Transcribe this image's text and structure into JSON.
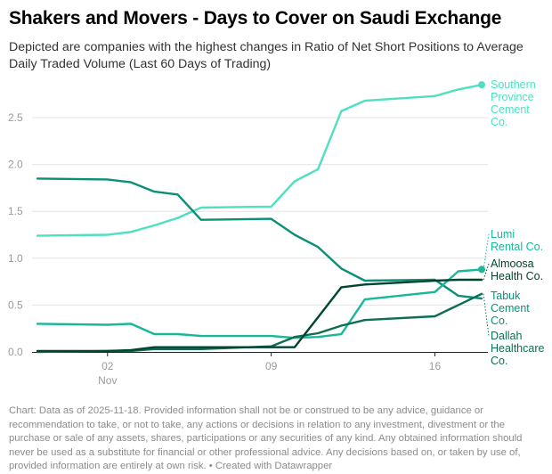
{
  "header": {
    "title": "Shakers and Movers - Days to Cover on Saudi Exchange",
    "subtitle": "Depicted are companies with the highest changes in Ratio of Net Short Positions to Average Daily Traded Volume (Last 60 Days of Trading)"
  },
  "footer": {
    "text": "Chart: Data as of 2025-11-18. Provided information shall not be or construed to be any advice, guidance or recommendation to take, or not to take, any actions or decisions in relation to any investment, divestment or the purchase or sale of any assets, shares, participations or any securities of any kind. Any obtained information should never be used as a substitute for financial or other professional advice. Any decisions based on, or taken by use of, provided information are entirely at own risk. • Created with Datawrapper"
  },
  "chart_data": {
    "type": "line",
    "title": "Shakers and Movers - Days to Cover on Saudi Exchange",
    "xlabel": "",
    "ylabel": "",
    "x": [
      "2025-10-30",
      "2025-11-02",
      "2025-11-03",
      "2025-11-04",
      "2025-11-05",
      "2025-11-06",
      "2025-11-09",
      "2025-11-10",
      "2025-11-11",
      "2025-11-12",
      "2025-11-13",
      "2025-11-16",
      "2025-11-17",
      "2025-11-18"
    ],
    "x_day_offsets": [
      0,
      3,
      4,
      5,
      6,
      7,
      10,
      11,
      12,
      13,
      14,
      17,
      18,
      19
    ],
    "xlim_day_offsets": [
      0,
      19
    ],
    "x_ticks": [
      {
        "offset": 3,
        "label": "02",
        "sublabel": "Nov"
      },
      {
        "offset": 10,
        "label": "09",
        "sublabel": ""
      },
      {
        "offset": 17,
        "label": "16",
        "sublabel": ""
      }
    ],
    "ylim": [
      0,
      2.9
    ],
    "y_ticks": [
      0,
      0.5,
      1.0,
      1.5,
      2.0,
      2.5
    ],
    "y_tick_labels": [
      "0.0",
      "0.5",
      "1.0",
      "1.5",
      "2.0",
      "2.5"
    ],
    "grid": true,
    "legend": "direct-labels-right",
    "series": [
      {
        "name": "Southern Province Cement Co.",
        "label_lines": [
          "Southern",
          "Province",
          "Cement",
          "Co."
        ],
        "color": "#4ee0c0",
        "end_dot": true,
        "values": [
          1.24,
          1.25,
          1.28,
          1.35,
          1.43,
          1.54,
          1.55,
          1.82,
          1.95,
          2.57,
          2.68,
          2.73,
          2.8,
          2.85
        ]
      },
      {
        "name": "Tabuk Cement Co.",
        "label_lines": [
          "Tabuk",
          "Cement",
          "Co."
        ],
        "color": "#0b8f77",
        "end_dot": false,
        "values": [
          1.85,
          1.84,
          1.81,
          1.71,
          1.68,
          1.41,
          1.42,
          1.25,
          1.12,
          0.89,
          0.76,
          0.77,
          0.6,
          0.57
        ]
      },
      {
        "name": "Lumi Rental Co.",
        "label_lines": [
          "Lumi",
          "Rental Co."
        ],
        "color": "#17b899",
        "end_dot": true,
        "values": [
          0.3,
          0.29,
          0.3,
          0.19,
          0.19,
          0.17,
          0.17,
          0.15,
          0.16,
          0.19,
          0.56,
          0.64,
          0.86,
          0.88
        ]
      },
      {
        "name": "Dallah Healthcare Co.",
        "label_lines": [
          "Dallah",
          "Healthcare",
          "Co."
        ],
        "color": "#0d6e55",
        "end_dot": false,
        "values": [
          0.0,
          0.01,
          0.01,
          0.03,
          0.03,
          0.03,
          0.06,
          0.16,
          0.2,
          0.28,
          0.34,
          0.38,
          0.5,
          0.62
        ]
      },
      {
        "name": "Almoosa Health Co.",
        "label_lines": [
          "Almoosa",
          "Health Co."
        ],
        "color": "#00452f",
        "end_dot": false,
        "values": [
          0.01,
          0.01,
          0.02,
          0.05,
          0.05,
          0.05,
          0.05,
          0.05,
          0.37,
          0.69,
          0.72,
          0.76,
          0.77,
          0.77
        ]
      }
    ]
  }
}
